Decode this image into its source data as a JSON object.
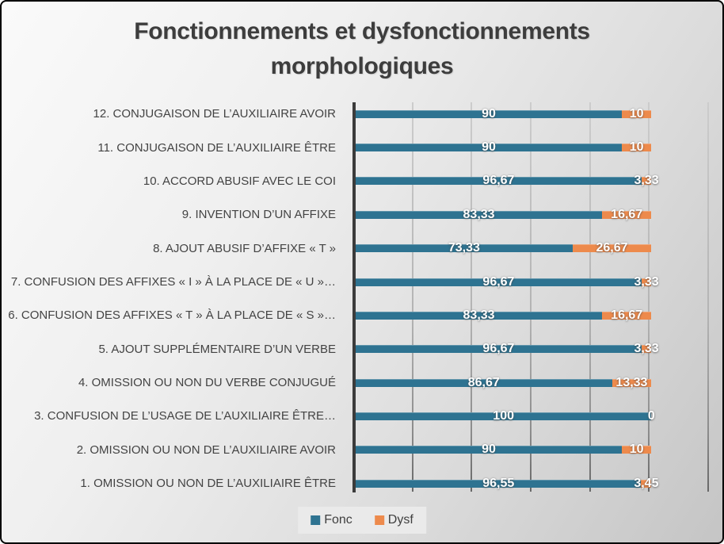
{
  "header": {
    "title": "Fonctionnements et dysfonctionnements morphologiques"
  },
  "legend": [
    {
      "label": "Fonc",
      "color": "#2e7391"
    },
    {
      "label": "Dysf",
      "color": "#ed8a4c"
    }
  ],
  "chart_data": {
    "type": "bar",
    "orientation": "horizontal",
    "stacked": true,
    "title": "Fonctionnements et dysfonctionnements morphologiques",
    "xlim": [
      0,
      120
    ],
    "tick_step": 20,
    "grid": true,
    "x_tick_labels_visible": false,
    "legend_position": "bottom",
    "value_label_decimal_separator": ",",
    "series_meta": [
      {
        "name": "Fonc",
        "color": "#2e7391"
      },
      {
        "name": "Dysf",
        "color": "#ed8a4c"
      }
    ],
    "rows": [
      {
        "category": "12. CONJUGAISON DE L’AUXILIAIRE AVOIR",
        "fonc": 90,
        "dysf": 10,
        "fonc_label": "90",
        "dysf_label": "10"
      },
      {
        "category": "11. CONJUGAISON DE L’AUXILIAIRE ÊTRE",
        "fonc": 90,
        "dysf": 10,
        "fonc_label": "90",
        "dysf_label": "10"
      },
      {
        "category": "10. ACCORD ABUSIF AVEC LE COI",
        "fonc": 96.67,
        "dysf": 3.33,
        "fonc_label": "96,67",
        "dysf_label": "3,33"
      },
      {
        "category": "9. INVENTION D’UN AFFIXE",
        "fonc": 83.33,
        "dysf": 16.67,
        "fonc_label": "83,33",
        "dysf_label": "16,67"
      },
      {
        "category": "8. AJOUT ABUSIF D’AFFIXE « T »",
        "fonc": 73.33,
        "dysf": 26.67,
        "fonc_label": "73,33",
        "dysf_label": "26,67"
      },
      {
        "category": "7. CONFUSION DES AFFIXES « I » À LA PLACE DE « U »…",
        "fonc": 96.67,
        "dysf": 3.33,
        "fonc_label": "96,67",
        "dysf_label": "3,33"
      },
      {
        "category": "6. CONFUSION DES AFFIXES « T » À LA PLACE DE « S »…",
        "fonc": 83.33,
        "dysf": 16.67,
        "fonc_label": "83,33",
        "dysf_label": "16,67"
      },
      {
        "category": "5. AJOUT SUPPLÉMENTAIRE D’UN VERBE",
        "fonc": 96.67,
        "dysf": 3.33,
        "fonc_label": "96,67",
        "dysf_label": "3,33"
      },
      {
        "category": "4. OMISSION OU NON DU VERBE CONJUGUÉ",
        "fonc": 86.67,
        "dysf": 13.33,
        "fonc_label": "86,67",
        "dysf_label": "13,33"
      },
      {
        "category": "3. CONFUSION DE L’USAGE DE L’AUXILIAIRE ÊTRE…",
        "fonc": 100,
        "dysf": 0,
        "fonc_label": "100",
        "dysf_label": "0"
      },
      {
        "category": "2. OMISSION OU NON DE L’AUXILIAIRE AVOIR",
        "fonc": 90,
        "dysf": 10,
        "fonc_label": "90",
        "dysf_label": "10"
      },
      {
        "category": "1. OMISSION OU NON DE L’AUXILIAIRE ÊTRE",
        "fonc": 96.55,
        "dysf": 3.45,
        "fonc_label": "96,55",
        "dysf_label": "3,45"
      }
    ]
  }
}
